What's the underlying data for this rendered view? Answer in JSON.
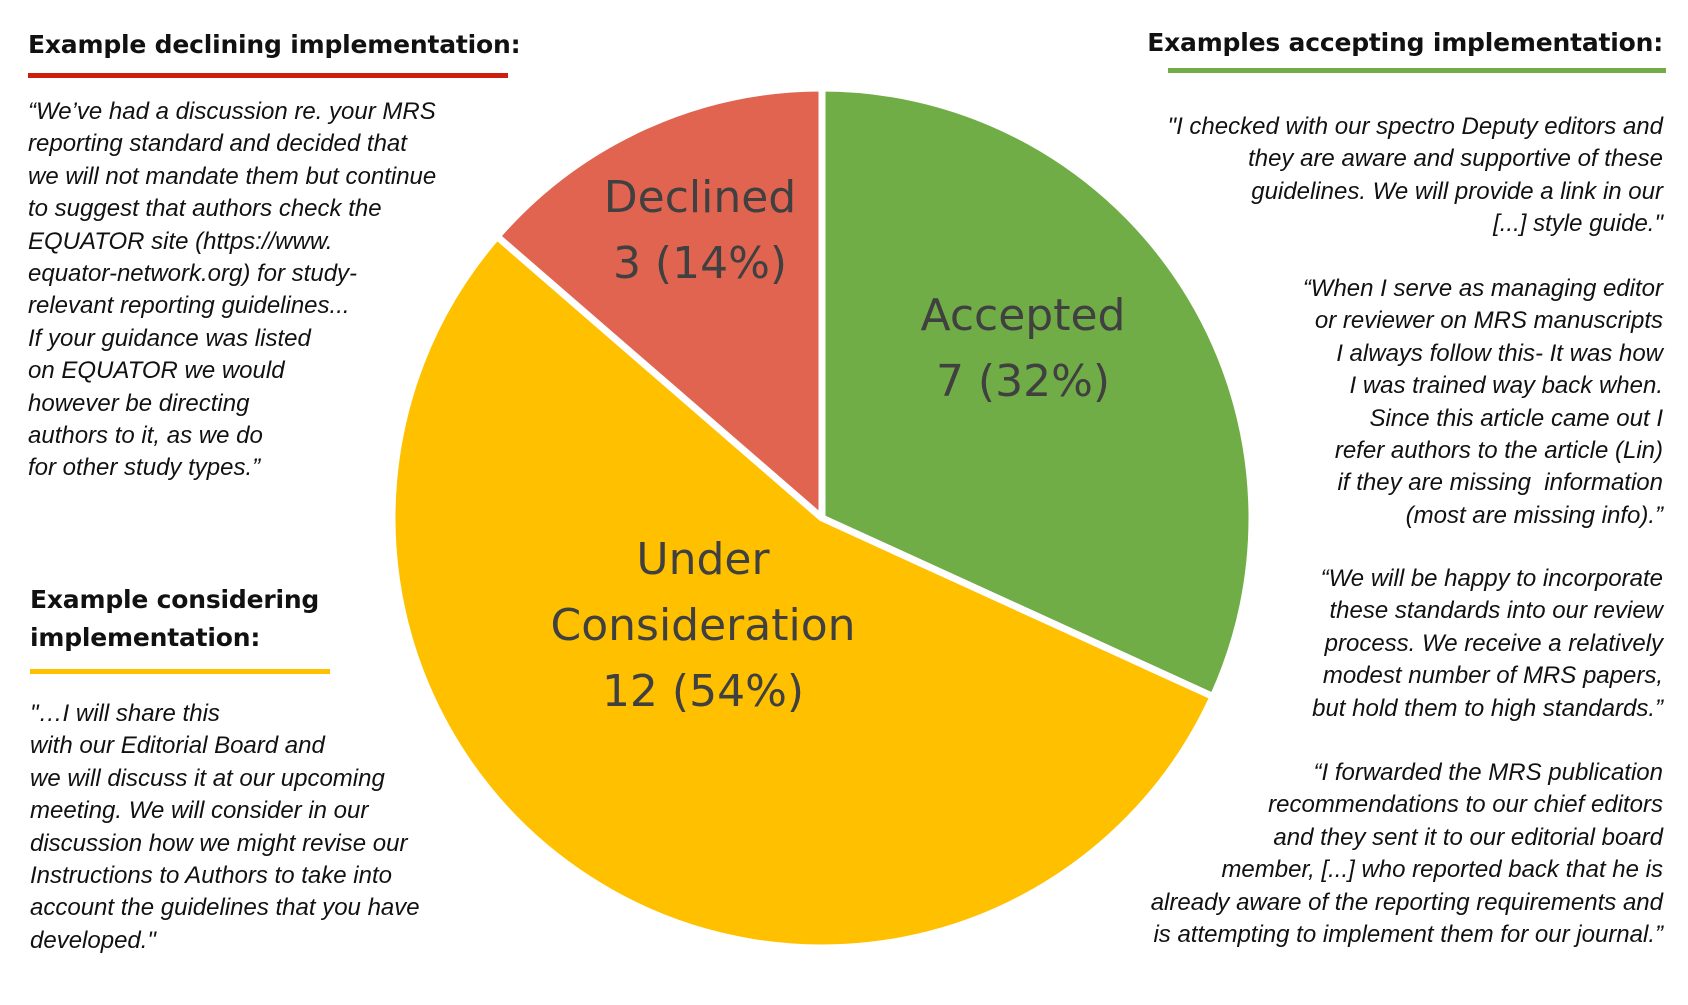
{
  "chart_data": {
    "type": "pie",
    "slices": [
      {
        "label_lines": [
          "Accepted",
          "7 (32%)"
        ],
        "category": "Accepted",
        "value": 7,
        "percent": 32,
        "color": "#70AD47"
      },
      {
        "label_lines": [
          "Under",
          "Consideration",
          "12 (54%)"
        ],
        "category": "Under Consideration",
        "value": 12,
        "percent": 54,
        "color": "#FFC000"
      },
      {
        "label_lines": [
          "Declined",
          "3 (14%)"
        ],
        "category": "Declined",
        "value": 3,
        "percent": 14,
        "color": "#E06450"
      }
    ]
  },
  "panels": {
    "declining": {
      "heading": "Example declining implementation:",
      "rule_color": "#CC1F0E",
      "lines": [
        "“We’ve had a discussion re. your MRS",
        "reporting standard and decided that",
        "we will not mandate them but continue",
        "to suggest that authors check the",
        "EQUATOR site (https://www.",
        "equator-network.org) for study-",
        "relevant reporting guidelines...",
        "If your guidance was listed",
        "on EQUATOR we would",
        "however be directing",
        "authors to it, as we do",
        "for other study types.”"
      ]
    },
    "considering": {
      "heading_lines": [
        "Example considering",
        "implementation:"
      ],
      "rule_color": "#FFC000",
      "lines": [
        "\"…I will share this",
        "with our Editorial Board and",
        "we will discuss it at our upcoming",
        "meeting. We will consider in our",
        "discussion how we might revise our",
        "Instructions to Authors to take into",
        "account the guidelines that you have",
        "developed.\""
      ]
    },
    "accepting": {
      "heading": "Examples accepting implementation:",
      "rule_color": "#70AD47",
      "quotes": [
        [
          "\"I checked with our spectro Deputy editors and",
          "they are aware and supportive of these",
          "guidelines. We will provide a link in our",
          "[...] style guide.\""
        ],
        [
          "“When I serve as managing editor",
          "or reviewer on MRS manuscripts",
          "I always follow this- It was how",
          "I was trained way back when.",
          "Since this article came out I",
          "refer authors to the article (Lin)",
          "if they are missing  information",
          "(most are missing info).”"
        ],
        [
          "“We will be happy to incorporate",
          "these standards into our review",
          "process. We receive a relatively",
          "modest number of MRS papers,",
          "but hold them to high standards.”"
        ],
        [
          "“I forwarded the MRS publication",
          "recommendations to our chief editors",
          "and they sent it to our editorial board",
          "member, [...] who reported back that he is",
          "already aware of the reporting requirements and",
          "is attempting to implement them for our journal.”"
        ]
      ]
    }
  }
}
